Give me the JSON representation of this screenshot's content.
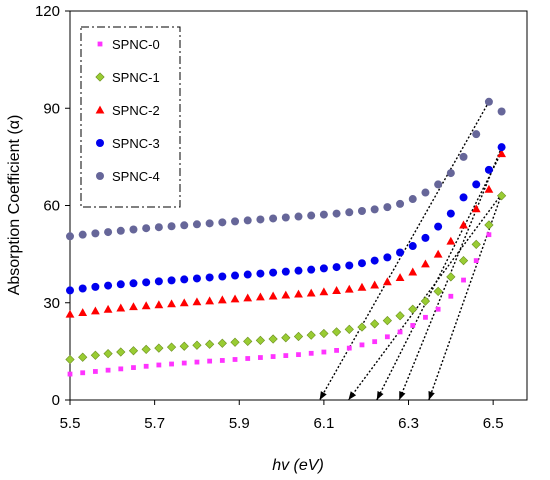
{
  "chart_data": {
    "type": "scatter",
    "title": "",
    "xlabel": "hv (eV)",
    "ylabel": "Absorption Coefficient (α)",
    "xlim": [
      5.5,
      6.58
    ],
    "ylim": [
      0,
      120
    ],
    "xticks": [
      "5.5",
      "5.7",
      "5.9",
      "6.1",
      "6.3",
      "6.5"
    ],
    "yticks": [
      "0",
      "30",
      "60",
      "90",
      "120"
    ],
    "grid": false,
    "legend_position": "top-left",
    "series": [
      {
        "name": "SPNC-0",
        "marker": "square",
        "color": "#ff33ff",
        "x": [
          5.5,
          5.53,
          5.56,
          5.59,
          5.62,
          5.65,
          5.68,
          5.71,
          5.74,
          5.77,
          5.8,
          5.83,
          5.86,
          5.89,
          5.92,
          5.95,
          5.98,
          6.01,
          6.04,
          6.07,
          6.1,
          6.13,
          6.16,
          6.19,
          6.22,
          6.25,
          6.28,
          6.31,
          6.34,
          6.37,
          6.4,
          6.43,
          6.46,
          6.49
        ],
        "y": [
          8.0,
          8.4,
          8.8,
          9.2,
          9.6,
          10.0,
          10.4,
          10.8,
          11.1,
          11.4,
          11.7,
          12.0,
          12.2,
          12.5,
          12.8,
          13.1,
          13.4,
          13.7,
          14.0,
          14.4,
          14.8,
          15.3,
          16.0,
          17.0,
          18.0,
          19.5,
          21.0,
          23.0,
          25.5,
          28.0,
          32.0,
          37.0,
          43.0,
          51.0
        ]
      },
      {
        "name": "SPNC-1",
        "marker": "diamond",
        "color": "#99cc33",
        "x": [
          5.5,
          5.53,
          5.56,
          5.59,
          5.62,
          5.65,
          5.68,
          5.71,
          5.74,
          5.77,
          5.8,
          5.83,
          5.86,
          5.89,
          5.92,
          5.95,
          5.98,
          6.01,
          6.04,
          6.07,
          6.1,
          6.13,
          6.16,
          6.19,
          6.22,
          6.25,
          6.28,
          6.31,
          6.34,
          6.37,
          6.4,
          6.43,
          6.46,
          6.49,
          6.52
        ],
        "y": [
          12.5,
          13.2,
          13.8,
          14.3,
          14.8,
          15.2,
          15.6,
          16.0,
          16.3,
          16.6,
          16.9,
          17.2,
          17.5,
          17.8,
          18.1,
          18.4,
          18.8,
          19.2,
          19.6,
          20.0,
          20.5,
          21.0,
          21.8,
          22.5,
          23.5,
          24.5,
          26.0,
          28.0,
          30.5,
          33.5,
          38.0,
          43.0,
          48.0,
          54.0,
          63.0
        ]
      },
      {
        "name": "SPNC-2",
        "marker": "triangle",
        "color": "#ff0000",
        "x": [
          5.5,
          5.53,
          5.56,
          5.59,
          5.62,
          5.65,
          5.68,
          5.71,
          5.74,
          5.77,
          5.8,
          5.83,
          5.86,
          5.89,
          5.92,
          5.95,
          5.98,
          6.01,
          6.04,
          6.07,
          6.1,
          6.13,
          6.16,
          6.19,
          6.22,
          6.25,
          6.28,
          6.31,
          6.34,
          6.37,
          6.4,
          6.43,
          6.46,
          6.49,
          6.52
        ],
        "y": [
          26.5,
          27.0,
          27.5,
          28.0,
          28.4,
          28.8,
          29.1,
          29.4,
          29.7,
          30.0,
          30.3,
          30.6,
          30.9,
          31.2,
          31.5,
          31.8,
          32.1,
          32.4,
          32.7,
          33.0,
          33.4,
          33.8,
          34.2,
          34.8,
          35.5,
          36.5,
          37.8,
          39.5,
          42.0,
          45.0,
          49.0,
          54.0,
          59.0,
          65.0,
          76.0
        ]
      },
      {
        "name": "SPNC-3",
        "marker": "circle",
        "color": "#0000ee",
        "x": [
          5.5,
          5.53,
          5.56,
          5.59,
          5.62,
          5.65,
          5.68,
          5.71,
          5.74,
          5.77,
          5.8,
          5.83,
          5.86,
          5.89,
          5.92,
          5.95,
          5.98,
          6.01,
          6.04,
          6.07,
          6.1,
          6.13,
          6.16,
          6.19,
          6.22,
          6.25,
          6.28,
          6.31,
          6.34,
          6.37,
          6.4,
          6.43,
          6.46,
          6.49,
          6.52
        ],
        "y": [
          33.8,
          34.4,
          34.9,
          35.3,
          35.7,
          36.0,
          36.3,
          36.6,
          36.9,
          37.2,
          37.5,
          37.8,
          38.1,
          38.4,
          38.7,
          39.0,
          39.3,
          39.6,
          39.9,
          40.2,
          40.6,
          41.0,
          41.5,
          42.2,
          43.0,
          44.0,
          45.5,
          47.5,
          50.0,
          53.5,
          57.5,
          62.5,
          66.5,
          71.0,
          78.0
        ]
      },
      {
        "name": "SPNC-4",
        "marker": "circle",
        "color": "#666699",
        "x": [
          5.5,
          5.53,
          5.56,
          5.59,
          5.62,
          5.65,
          5.68,
          5.71,
          5.74,
          5.77,
          5.8,
          5.83,
          5.86,
          5.89,
          5.92,
          5.95,
          5.98,
          6.01,
          6.04,
          6.07,
          6.1,
          6.13,
          6.16,
          6.19,
          6.22,
          6.25,
          6.28,
          6.31,
          6.34,
          6.37,
          6.4,
          6.43,
          6.46,
          6.49,
          6.52
        ],
        "y": [
          50.5,
          51.0,
          51.4,
          51.8,
          52.2,
          52.6,
          53.0,
          53.3,
          53.6,
          53.9,
          54.2,
          54.5,
          54.8,
          55.1,
          55.4,
          55.7,
          56.0,
          56.3,
          56.6,
          56.9,
          57.2,
          57.5,
          57.9,
          58.3,
          58.8,
          59.5,
          60.5,
          62.0,
          64.0,
          66.5,
          70.0,
          75.0,
          82.0,
          92.0,
          89.0
        ]
      }
    ],
    "fit_lines": [
      {
        "from": [
          6.52,
          63.5
        ],
        "to": [
          6.348,
          0
        ]
      },
      {
        "from": [
          6.52,
          78.0
        ],
        "to": [
          6.278,
          0
        ]
      },
      {
        "from": [
          6.52,
          76.5
        ],
        "to": [
          6.225,
          0
        ]
      },
      {
        "from": [
          6.52,
          63.5
        ],
        "to": [
          6.158,
          0
        ]
      },
      {
        "from": [
          6.49,
          92.0
        ],
        "to": [
          6.09,
          0
        ]
      }
    ]
  }
}
